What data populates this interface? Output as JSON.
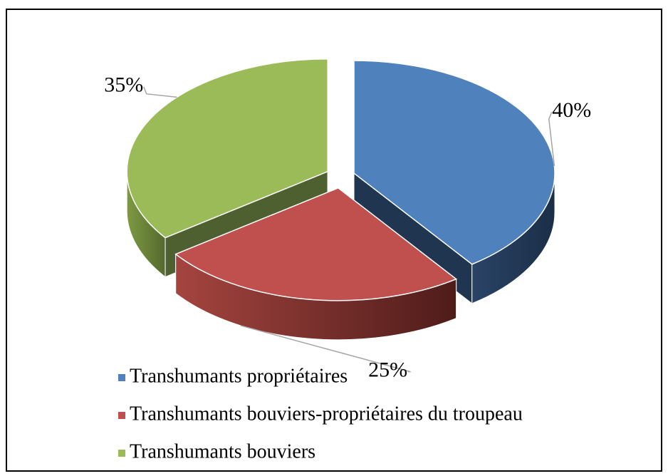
{
  "chart_data": {
    "type": "pie",
    "categories": [
      "Transhumants propriétaires",
      "Transhumants bouviers-propriétaires du troupeau",
      "Transhumants bouviers"
    ],
    "values": [
      40,
      25,
      35
    ],
    "value_labels": [
      "40%",
      "25%",
      "35%"
    ],
    "colors": [
      "#4f81bd",
      "#c0504d",
      "#9bbb59"
    ],
    "legend": "bottom"
  }
}
